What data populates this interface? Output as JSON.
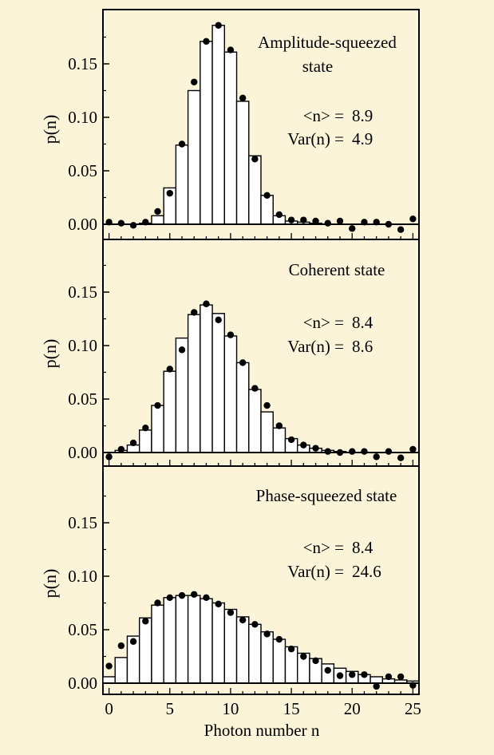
{
  "colors": {
    "background": "#fbf4d9",
    "bar_fill": "#ffffff",
    "ink": "#000000"
  },
  "figure": {
    "xlabel": "Photon number n",
    "ylabel": "p(n)"
  },
  "chart_data": [
    {
      "type": "bar",
      "title": "Amplitude-squeezed state",
      "title_lines": [
        "Amplitude-squeezed",
        "state"
      ],
      "stats": [
        {
          "label": "<n> =",
          "value": "8.9"
        },
        {
          "label": "Var(n) =",
          "value": "4.9"
        }
      ],
      "xlabel": "Photon number n",
      "ylabel": "p(n)",
      "xlim": [
        -0.5,
        25.5
      ],
      "ylim": [
        -0.012,
        0.192
      ],
      "yticks": [
        0.0,
        0.05,
        0.1,
        0.15
      ],
      "ytick_labels": [
        "0.00",
        "0.05",
        "0.10",
        "0.15"
      ],
      "n": [
        0,
        1,
        2,
        3,
        4,
        5,
        6,
        7,
        8,
        9,
        10,
        11,
        12,
        13,
        14,
        15,
        16,
        17,
        18,
        19,
        20,
        21,
        22,
        23,
        24,
        25
      ],
      "theory_bars": [
        0,
        0,
        0,
        0.001,
        0.008,
        0.034,
        0.074,
        0.125,
        0.171,
        0.186,
        0.161,
        0.115,
        0.064,
        0.027,
        0.008,
        0.003,
        0.002,
        0.001,
        0,
        0,
        0,
        0,
        0,
        0,
        0,
        0
      ],
      "measured": [
        0.002,
        0.001,
        -0.001,
        0.002,
        0.012,
        0.029,
        0.075,
        0.133,
        0.171,
        0.186,
        0.163,
        0.118,
        0.061,
        0.027,
        0.009,
        0.004,
        0.004,
        0.003,
        0.001,
        0.003,
        -0.004,
        0.002,
        0.002,
        0.0,
        -0.005,
        0.005
      ]
    },
    {
      "type": "bar",
      "title": "Coherent state",
      "title_lines": [
        "Coherent state"
      ],
      "stats": [
        {
          "label": "<n> =",
          "value": "8.4"
        },
        {
          "label": "Var(n) =",
          "value": "8.6"
        }
      ],
      "xlabel": "Photon number n",
      "ylabel": "p(n)",
      "xlim": [
        -0.5,
        25.5
      ],
      "ylim": [
        -0.012,
        0.192
      ],
      "yticks": [
        0.0,
        0.05,
        0.1,
        0.15
      ],
      "ytick_labels": [
        "0.00",
        "0.05",
        "0.10",
        "0.15"
      ],
      "n": [
        0,
        1,
        2,
        3,
        4,
        5,
        6,
        7,
        8,
        9,
        10,
        11,
        12,
        13,
        14,
        15,
        16,
        17,
        18,
        19,
        20,
        21,
        22,
        23,
        24,
        25
      ],
      "theory_bars": [
        0,
        0.002,
        0.007,
        0.021,
        0.044,
        0.076,
        0.107,
        0.129,
        0.138,
        0.13,
        0.109,
        0.084,
        0.059,
        0.038,
        0.023,
        0.013,
        0.007,
        0.004,
        0.002,
        0.001,
        0,
        0,
        0,
        0,
        0,
        0
      ],
      "measured": [
        -0.004,
        0.003,
        0.009,
        0.023,
        0.044,
        0.078,
        0.096,
        0.131,
        0.139,
        0.124,
        0.11,
        0.084,
        0.06,
        0.044,
        0.025,
        0.012,
        0.007,
        0.004,
        0.001,
        0.0,
        0.001,
        0.001,
        -0.004,
        0.001,
        -0.005,
        0.003
      ]
    },
    {
      "type": "bar",
      "title": "Phase-squeezed state",
      "title_lines": [
        "Phase-squeezed state"
      ],
      "stats": [
        {
          "label": "<n> =",
          "value": "8.4"
        },
        {
          "label": "Var(n) =",
          "value": "24.6"
        }
      ],
      "xlabel": "Photon number n",
      "ylabel": "p(n)",
      "xlim": [
        -0.5,
        25.5
      ],
      "ylim": [
        -0.012,
        0.192
      ],
      "yticks": [
        0.0,
        0.05,
        0.1,
        0.15
      ],
      "ytick_labels": [
        "0.00",
        "0.05",
        "0.10",
        "0.15"
      ],
      "xticks": [
        0,
        5,
        10,
        15,
        20,
        25
      ],
      "xtick_labels": [
        "0",
        "5",
        "10",
        "15",
        "20",
        "25"
      ],
      "n": [
        0,
        1,
        2,
        3,
        4,
        5,
        6,
        7,
        8,
        9,
        10,
        11,
        12,
        13,
        14,
        15,
        16,
        17,
        18,
        19,
        20,
        21,
        22,
        23,
        24,
        25
      ],
      "theory_bars": [
        0.006,
        0.024,
        0.044,
        0.061,
        0.073,
        0.08,
        0.082,
        0.082,
        0.079,
        0.075,
        0.069,
        0.062,
        0.055,
        0.048,
        0.041,
        0.034,
        0.028,
        0.023,
        0.018,
        0.014,
        0.011,
        0.008,
        0.006,
        0.004,
        0.003,
        0.002
      ],
      "measured": [
        0.016,
        0.035,
        0.039,
        0.058,
        0.075,
        0.08,
        0.082,
        0.083,
        0.08,
        0.074,
        0.066,
        0.059,
        0.055,
        0.046,
        0.041,
        0.032,
        0.025,
        0.021,
        0.012,
        0.007,
        0.008,
        0.008,
        -0.003,
        0.006,
        0.006,
        -0.002
      ]
    }
  ]
}
